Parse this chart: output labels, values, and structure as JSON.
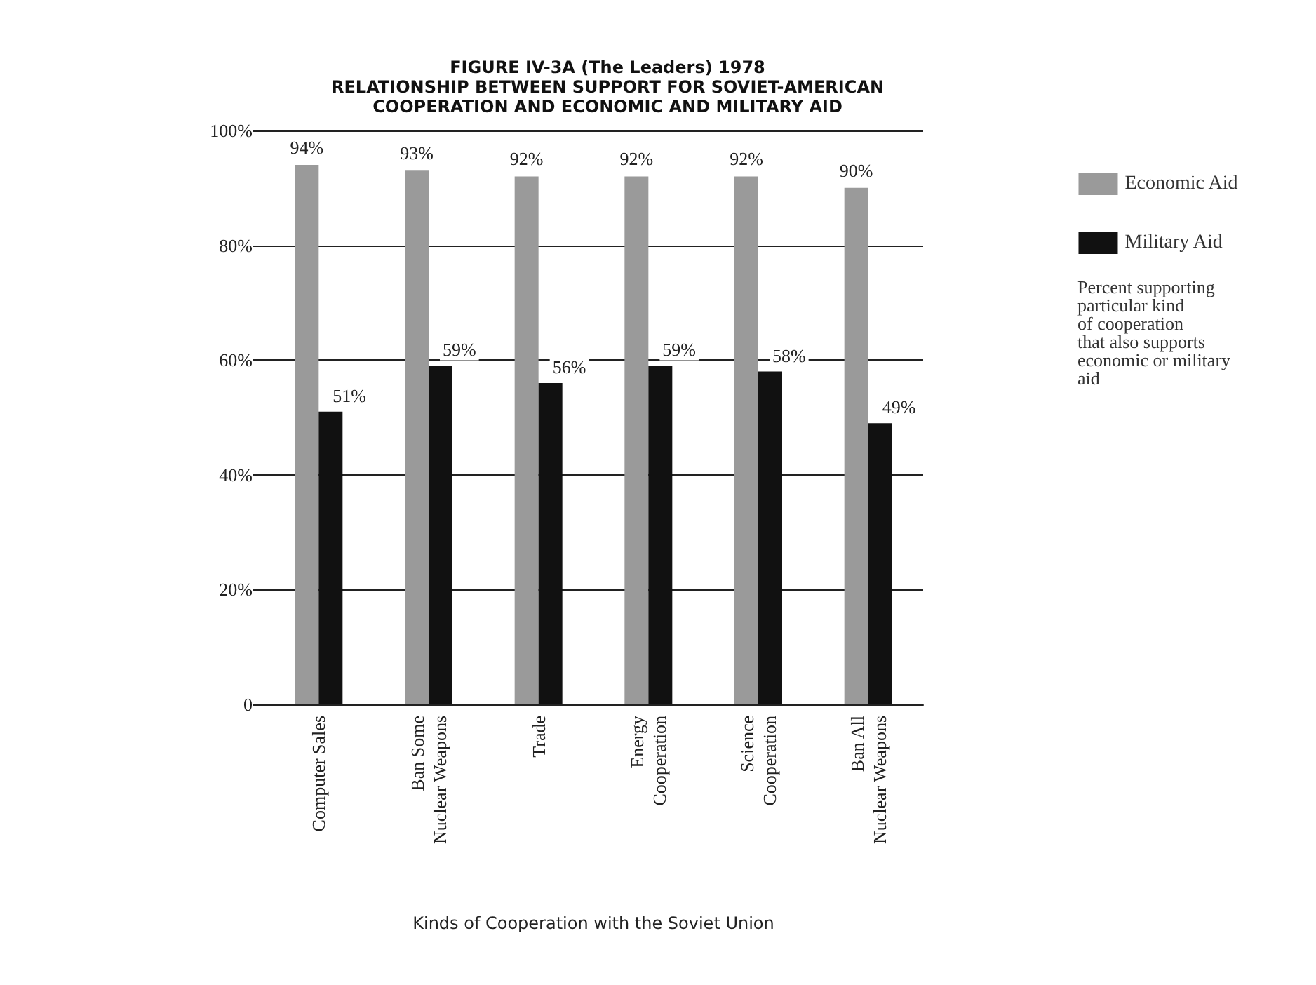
{
  "chart_data": {
    "type": "bar",
    "title": "FIGURE IV-3A (The Leaders) 1978\nRELATIONSHIP BETWEEN SUPPORT FOR SOVIET-AMERICAN\nCOOPERATION AND ECONOMIC AND MILITARY AID",
    "xlabel": "Kinds of Cooperation with the Soviet Union",
    "categories": [
      "Computer Sales",
      "Ban Some\nNuclear Weapons",
      "Trade",
      "Energy\nCooperation",
      "Science\nCooperation",
      "Ban All\nNuclear Weapons"
    ],
    "series": [
      {
        "name": "Economic Aid",
        "color": "#9a9a9a",
        "values": [
          94,
          93,
          92,
          92,
          92,
          90
        ],
        "value_labels": [
          "94%",
          "93%",
          "92%",
          "92%",
          "92%",
          "90%"
        ]
      },
      {
        "name": "Military Aid",
        "color": "#111111",
        "values": [
          51,
          59,
          56,
          59,
          58,
          49
        ],
        "value_labels": [
          "51%",
          "59%",
          "56%",
          "59%",
          "58%",
          "49%"
        ]
      }
    ],
    "ylim": [
      0,
      100
    ],
    "yticks": [
      {
        "value": 0,
        "label": "0"
      },
      {
        "value": 20,
        "label": "20%"
      },
      {
        "value": 40,
        "label": "40%"
      },
      {
        "value": 60,
        "label": "60%"
      },
      {
        "value": 80,
        "label": "80%"
      },
      {
        "value": 100,
        "label": "100%"
      }
    ],
    "grid": "y",
    "legend": "top right",
    "annotations": [
      "Percent supporting\nparticular kind\nof cooperation\nthat also supports\neconomic or military\naid"
    ]
  }
}
